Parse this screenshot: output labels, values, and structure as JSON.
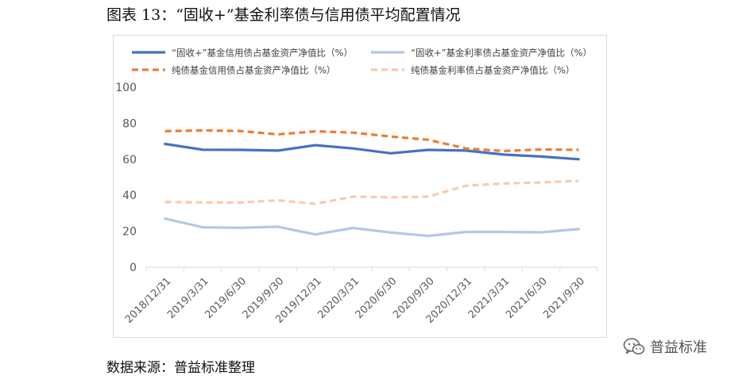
{
  "title": "图表 13：“固收+”基金利率债与信用债平均配置情况",
  "source": "数据来源：普益标准整理",
  "watermark": {
    "text": "普益标准",
    "icon": "wechat-icon"
  },
  "colors": {
    "series1": "#4472C4",
    "series2": "#B4C7E7",
    "series3": "#ED7D31",
    "series4": "#F8CBAD",
    "axis": "#d9d9d9",
    "tick_text": "#595959"
  },
  "chart_data": {
    "type": "line",
    "categories": [
      "2018/12/31",
      "2019/3/31",
      "2019/6/30",
      "2019/9/30",
      "2019/12/31",
      "2020/3/31",
      "2020/6/30",
      "2020/9/30",
      "2020/12/31",
      "2021/3/31",
      "2021/6/30",
      "2021/9/30"
    ],
    "ylim": [
      0,
      100
    ],
    "yticks": [
      0,
      20,
      40,
      60,
      80,
      100
    ],
    "grid": false,
    "legend_position": "top",
    "series": [
      {
        "name": "“固收+”基金信用债占基金资产净值比（%）",
        "style": "solid",
        "values": [
          68.5,
          65.3,
          65.2,
          64.8,
          67.8,
          66.0,
          63.3,
          65.2,
          64.8,
          62.6,
          61.5,
          60.0
        ]
      },
      {
        "name": "“固收+”基金利率债占基金资产净值比（%）",
        "style": "solid",
        "values": [
          27.0,
          22.2,
          21.9,
          22.5,
          18.2,
          21.8,
          19.3,
          17.4,
          19.6,
          19.6,
          19.4,
          21.2
        ]
      },
      {
        "name": "纯债基金信用债占基金资产净值比（%）",
        "style": "dashed",
        "values": [
          75.6,
          76.0,
          75.7,
          73.8,
          75.5,
          74.8,
          72.6,
          70.8,
          66.0,
          64.6,
          65.4,
          65.2
        ]
      },
      {
        "name": "纯债基金利率债占基金资产净值比（%）",
        "style": "dashed",
        "values": [
          36.3,
          36.0,
          35.9,
          37.2,
          35.2,
          39.2,
          38.8,
          39.2,
          45.3,
          46.5,
          47.1,
          48.0
        ]
      }
    ]
  }
}
